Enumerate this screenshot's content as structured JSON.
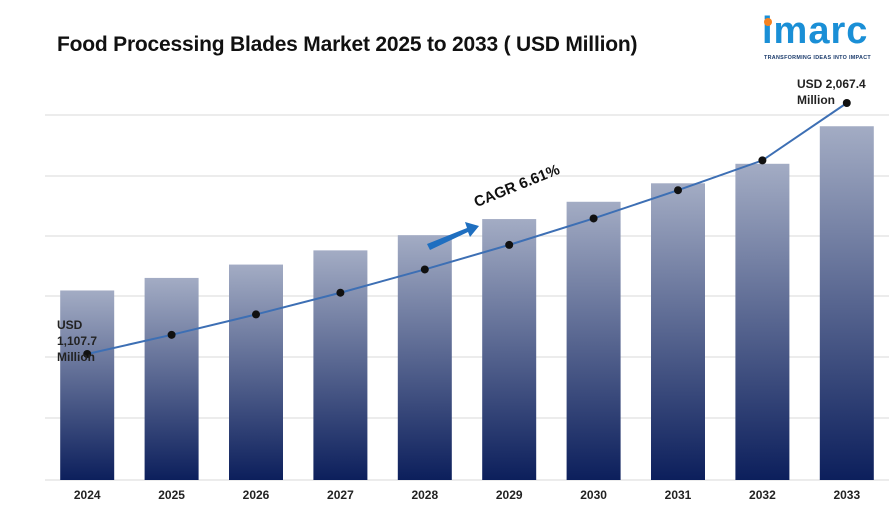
{
  "title": "Food Processing Blades Market 2025 to 2033 ( USD Million)",
  "logo": {
    "word": "imarc",
    "tagline": "TRANSFORMING IDEAS INTO IMPACT",
    "icon": "imarc-logo"
  },
  "annotations": {
    "start": [
      "USD",
      "1,107.7",
      "Million"
    ],
    "end": [
      "USD 2,067.4",
      "Million"
    ],
    "cagr": "CAGR 6.61%"
  },
  "colors": {
    "bar_top": "#a3acc4",
    "bar_bottom": "#0c1f5c",
    "line": "#3d6fb4",
    "marker": "#111111",
    "arrow": "#1f6fc0",
    "grid": "#d9d9d9"
  },
  "chart_data": {
    "type": "bar",
    "categories": [
      "2024",
      "2025",
      "2026",
      "2027",
      "2028",
      "2029",
      "2030",
      "2031",
      "2032",
      "2033"
    ],
    "values": [
      1107.7,
      1181,
      1259,
      1342,
      1431,
      1525,
      1626,
      1734,
      1848,
      2067.4
    ],
    "line_values": [
      1107.7,
      1181,
      1259,
      1342,
      1431,
      1525,
      1626,
      1734,
      1848,
      2067.4
    ],
    "title": "Food Processing Blades Market 2025 to 2033 ( USD Million)",
    "xlabel": "",
    "ylabel": "",
    "grid": true,
    "legend": "none"
  }
}
